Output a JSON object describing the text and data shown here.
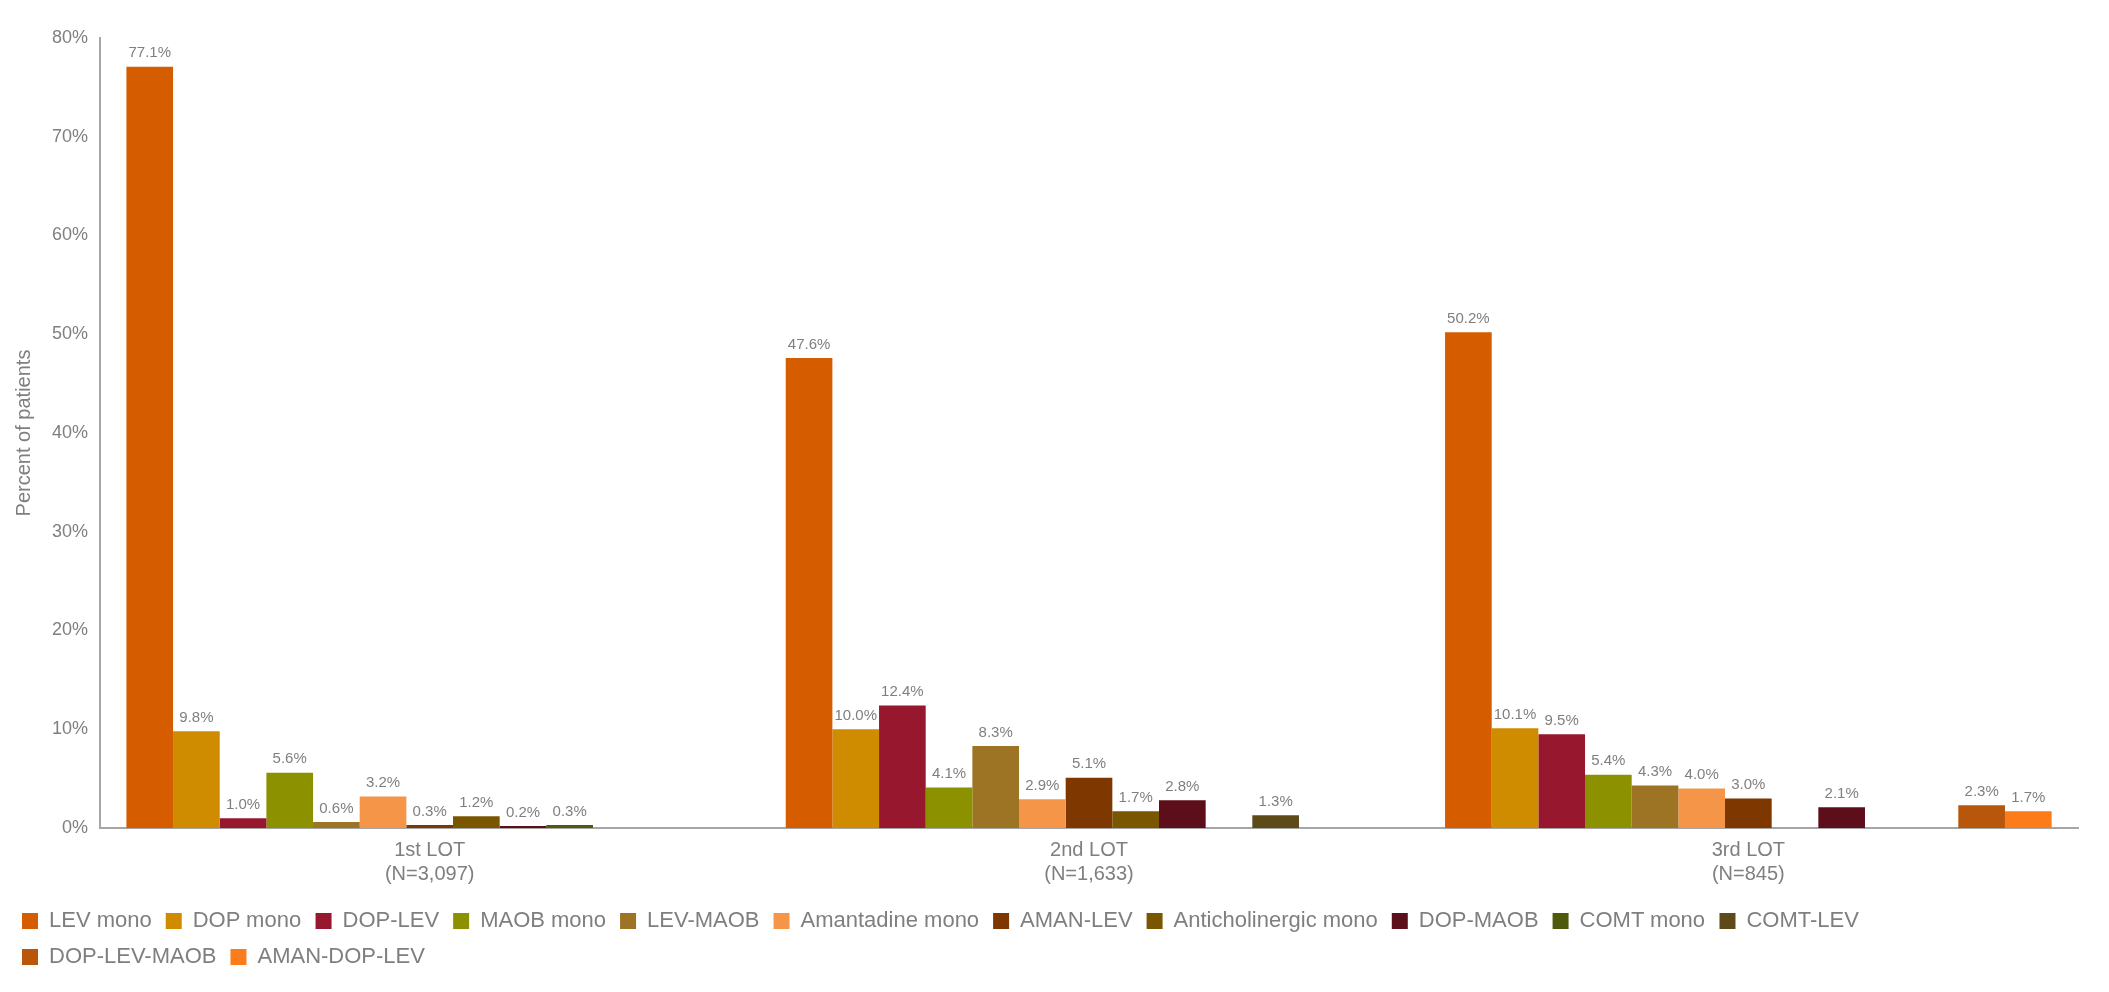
{
  "chart_data": {
    "type": "bar",
    "ylabel": "Percent of patients",
    "categories": [
      "1st LOT\n(N=3,097)",
      "2nd LOT\n(N=1,633)",
      "3rd LOT\n(N=845)"
    ],
    "ylim": [
      0,
      80
    ],
    "yticks": [
      {
        "value": 0,
        "label": "0%"
      },
      {
        "value": 10,
        "label": "10%"
      },
      {
        "value": 20,
        "label": "20%"
      },
      {
        "value": 30,
        "label": "30%"
      },
      {
        "value": 40,
        "label": "40%"
      },
      {
        "value": 50,
        "label": "50%"
      },
      {
        "value": 60,
        "label": "60%"
      },
      {
        "value": 70,
        "label": "70%"
      },
      {
        "value": 80,
        "label": "80%"
      }
    ],
    "grid": false,
    "legend": "bottom",
    "series": [
      {
        "name": "LEV mono",
        "color": "#d65c00",
        "values": [
          77.1,
          47.6,
          50.2
        ],
        "value_labels": [
          "77.1%",
          "47.6%",
          "50.2%"
        ]
      },
      {
        "name": "DOP mono",
        "color": "#d08c00",
        "values": [
          9.8,
          10.0,
          10.1
        ],
        "value_labels": [
          "9.8%",
          "10.0%",
          "10.1%"
        ]
      },
      {
        "name": "DOP-LEV",
        "color": "#97172e",
        "values": [
          1.0,
          12.4,
          9.5
        ],
        "value_labels": [
          "1.0%",
          "12.4%",
          "9.5%"
        ]
      },
      {
        "name": "MAOB mono",
        "color": "#8c9100",
        "values": [
          5.6,
          4.1,
          5.4
        ],
        "value_labels": [
          "5.6%",
          "4.1%",
          "5.4%"
        ]
      },
      {
        "name": "LEV-MAOB",
        "color": "#9c7424",
        "values": [
          0.6,
          8.3,
          4.3
        ],
        "value_labels": [
          "0.6%",
          "8.3%",
          "4.3%"
        ]
      },
      {
        "name": "Amantadine mono",
        "color": "#f59547",
        "values": [
          3.2,
          2.9,
          4.0
        ],
        "value_labels": [
          "3.2%",
          "2.9%",
          "4.0%"
        ]
      },
      {
        "name": "AMAN-LEV",
        "color": "#7f3700",
        "values": [
          0.3,
          5.1,
          3.0
        ],
        "value_labels": [
          "0.3%",
          "5.1%",
          "3.0%"
        ]
      },
      {
        "name": "Anticholinergic mono",
        "color": "#7b5600",
        "values": [
          1.2,
          1.7,
          null
        ],
        "value_labels": [
          "1.2%",
          "1.7%",
          null
        ]
      },
      {
        "name": "DOP-MAOB",
        "color": "#5c0e1b",
        "values": [
          0.2,
          2.8,
          2.1
        ],
        "value_labels": [
          "0.2%",
          "2.8%",
          "2.1%"
        ]
      },
      {
        "name": "COMT mono",
        "color": "#4f5a0a",
        "values": [
          0.3,
          null,
          null
        ],
        "value_labels": [
          "0.3%",
          null,
          null
        ]
      },
      {
        "name": "COMT-LEV",
        "color": "#5c4a18",
        "values": [
          null,
          1.3,
          null
        ],
        "value_labels": [
          null,
          "1.3%",
          null
        ]
      },
      {
        "name": "DOP-LEV-MAOB",
        "color": "#b8560b",
        "values": [
          null,
          null,
          2.3
        ],
        "value_labels": [
          null,
          null,
          "2.3%"
        ]
      },
      {
        "name": "AMAN-DOP-LEV",
        "color": "#fb7c18",
        "values": [
          null,
          null,
          1.7
        ],
        "value_labels": [
          null,
          null,
          "1.7%"
        ]
      }
    ]
  }
}
